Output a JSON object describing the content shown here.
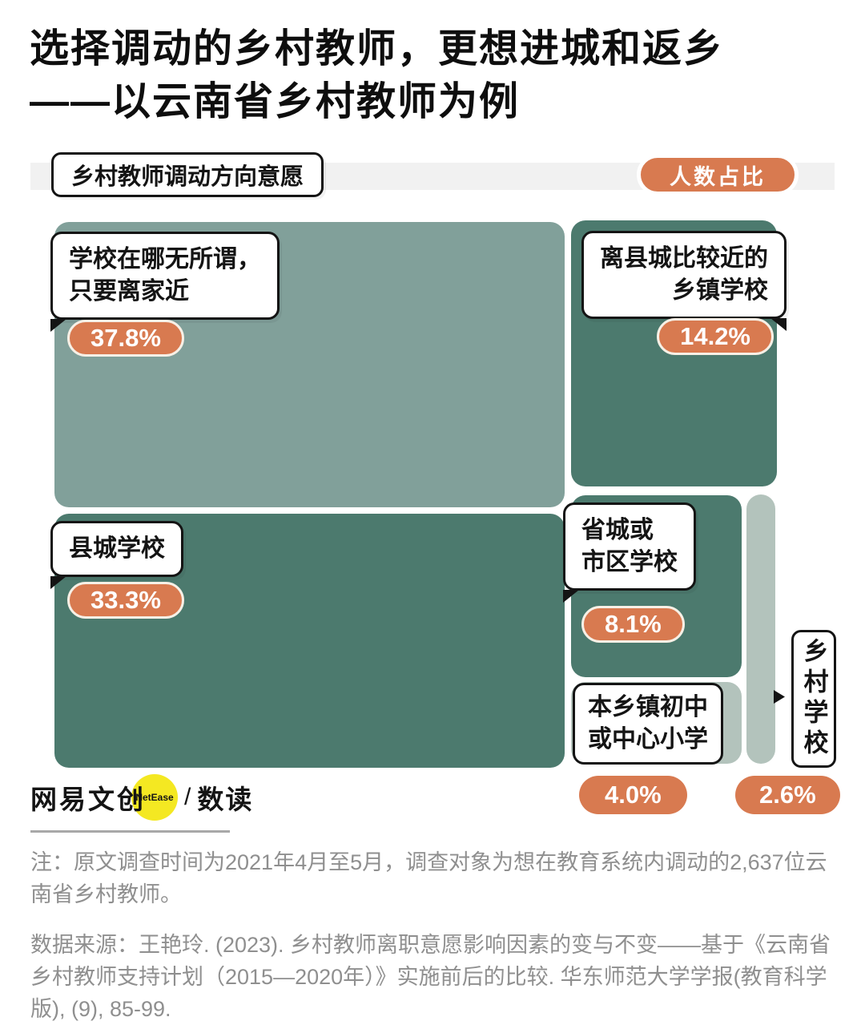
{
  "title": {
    "line1": "选择调动的乡村教师，更想进城和返乡",
    "line2": "——以云南省乡村教师为例"
  },
  "header": {
    "chart_label": "乡村教师调动方向意愿",
    "unit_badge": "人数占比"
  },
  "chart_data": {
    "type": "treemap",
    "title": "乡村教师调动方向意愿",
    "value_label": "人数占比",
    "value_unit": "%",
    "total": 100.0,
    "items": [
      {
        "label": "学校在哪无所谓，只要离家近",
        "label_lines": [
          "学校在哪无所谓，",
          "只要离家近"
        ],
        "value": 37.8,
        "display": "37.8%",
        "color": "#81A09A"
      },
      {
        "label": "县城学校",
        "label_lines": [
          "县城学校"
        ],
        "value": 33.3,
        "display": "33.3%",
        "color": "#4C7A6E"
      },
      {
        "label": "离县城比较近的乡镇学校",
        "label_lines": [
          "离县城比较近的",
          "乡镇学校"
        ],
        "value": 14.2,
        "display": "14.2%",
        "color": "#4C7A6E"
      },
      {
        "label": "省城或市区学校",
        "label_lines": [
          "省城或",
          "市区学校"
        ],
        "value": 8.1,
        "display": "8.1%",
        "color": "#4C7A6E"
      },
      {
        "label": "本乡镇初中或中心小学",
        "label_lines": [
          "本乡镇初中",
          "或中心小学"
        ],
        "value": 4.0,
        "display": "4.0%",
        "color": "#B3C3BC"
      },
      {
        "label": "乡村学校",
        "label_lines": [
          "乡村学校"
        ],
        "value": 2.6,
        "display": "2.6%",
        "color": "#B3C3BC"
      }
    ]
  },
  "footer": {
    "logo_cn": "网易文创",
    "logo_en": "NetEase",
    "logo_sep": "/",
    "logo_sub": "数读"
  },
  "notes": {
    "note": "注：原文调查时间为2021年4月至5月，调查对象为想在教育系统内调动的2,637位云南省乡村教师。",
    "source": "数据来源：王艳玲. (2023). 乡村教师离职意愿影响因素的变与不变——基于《云南省乡村教师支持计划（2015—2020年）》实施前后的比较. 华东师范大学学报(教育科学版), (9), 85-99."
  },
  "colors": {
    "accent_orange": "#D87A50",
    "green_light": "#81A09A",
    "green_dark": "#4C7A6E",
    "green_pale": "#B3C3BC",
    "band_gray": "#F1F1F1",
    "note_gray": "#8F8F8F",
    "logo_yellow": "#F4E822",
    "ink": "#141414"
  }
}
